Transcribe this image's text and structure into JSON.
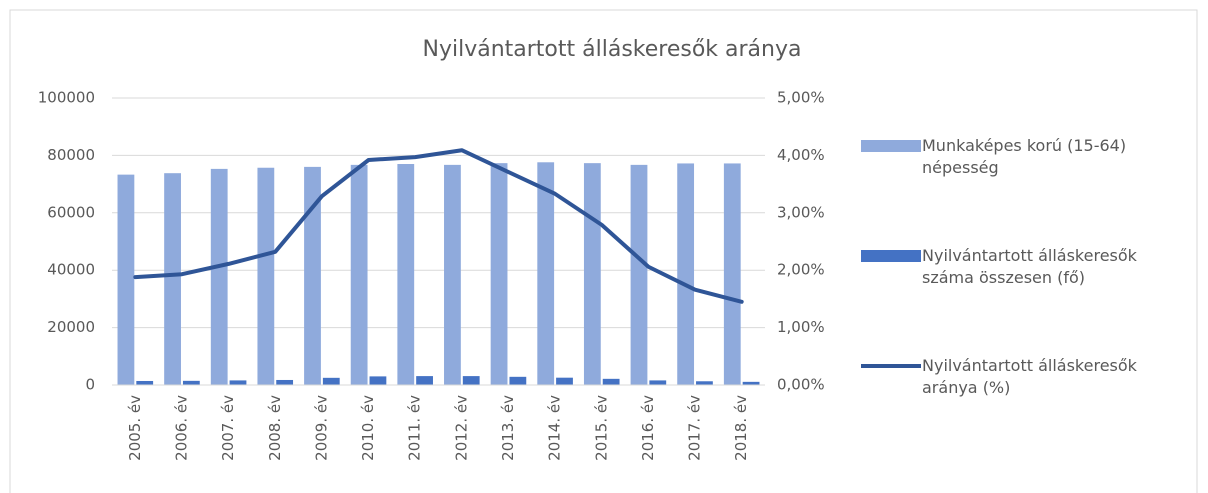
{
  "chart_data": {
    "type": "bar_line",
    "title": "Nyilvántartott álláskeresők aránya",
    "categories": [
      "2005. év",
      "2006. év",
      "2007. év",
      "2008. év",
      "2009. év",
      "2010. év",
      "2011. év",
      "2012. év",
      "2013. év",
      "2014. év",
      "2015. év",
      "2016. év",
      "2017. év",
      "2018. év"
    ],
    "series": [
      {
        "name": "Munkaképes korú (15-64) népesség",
        "color": "#8faadc",
        "type": "bar",
        "axis": "y",
        "values": [
          73300,
          73800,
          75300,
          75700,
          76000,
          76700,
          77000,
          76700,
          77300,
          77600,
          77300,
          76700,
          77200,
          77200
        ]
      },
      {
        "name": "Nyilvántartott álláskeresők száma összesen (fő)",
        "color": "#4472c4",
        "type": "bar",
        "axis": "y",
        "values": [
          1400,
          1450,
          1600,
          1750,
          2500,
          3000,
          3100,
          3100,
          2850,
          2550,
          2150,
          1600,
          1300,
          1100
        ]
      },
      {
        "name": "Nyilvántartott álláskeresők aránya (%)",
        "color": "#2f5597",
        "type": "line",
        "axis": "y2",
        "values": [
          1.88,
          1.93,
          2.11,
          2.32,
          3.29,
          3.92,
          3.97,
          4.09,
          3.71,
          3.33,
          2.79,
          2.06,
          1.66,
          1.45
        ]
      }
    ],
    "ylim": [
      0,
      100000
    ],
    "yticks": [
      0,
      20000,
      40000,
      60000,
      80000,
      100000
    ],
    "y2lim": [
      0,
      5
    ],
    "y2ticks": [
      {
        "value": 0,
        "label": "0,00%"
      },
      {
        "value": 1,
        "label": "1,00%"
      },
      {
        "value": 2,
        "label": "2,00%"
      },
      {
        "value": 3,
        "label": "3,00%"
      },
      {
        "value": 4,
        "label": "4,00%"
      },
      {
        "value": 5,
        "label": "5,00%"
      }
    ],
    "grid": true,
    "legend": "right"
  }
}
